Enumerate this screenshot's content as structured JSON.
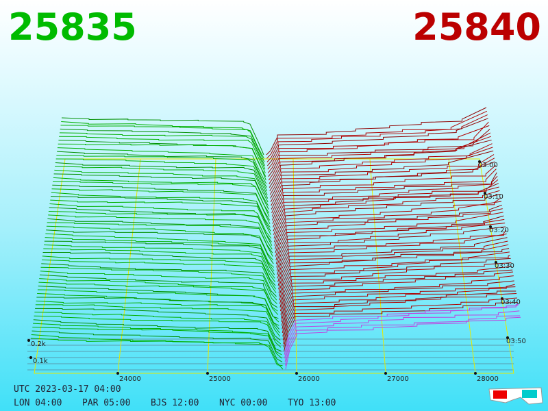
{
  "bid_price": "25835",
  "ask_price": "25840",
  "price_axis": [
    "24000",
    "25000",
    "26000",
    "27000",
    "28000"
  ],
  "time_axis": [
    "03:00",
    "03:10",
    "03:20",
    "03:30",
    "03:40",
    "03:50"
  ],
  "depth_axis": [
    "0.2k",
    "0.1k"
  ],
  "footer": {
    "utc": "UTC 2023-03-17 04:00",
    "zones": [
      "LON 04:00",
      "PAR 05:00",
      "BJS 12:00",
      "NYC 00:00",
      "TYO 13:00"
    ]
  }
}
